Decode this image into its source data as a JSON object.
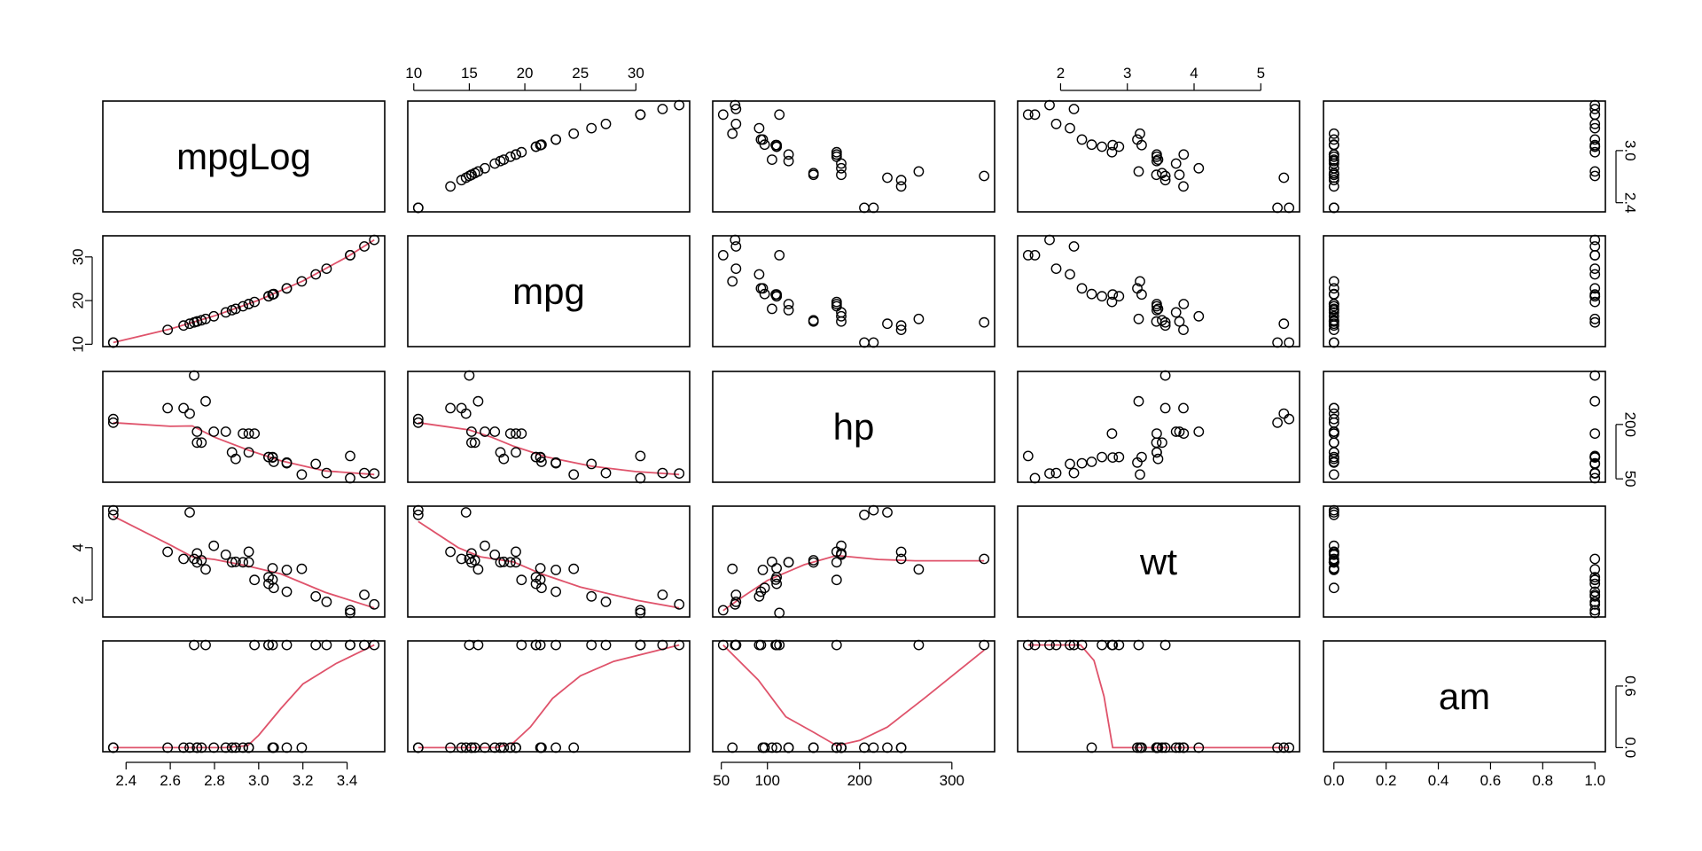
{
  "chart_data": {
    "type": "scatter",
    "title": "",
    "kind": "pairs-matrix",
    "variables": [
      "mpgLog",
      "mpg",
      "hp",
      "wt",
      "am"
    ],
    "smoother_color": "#DF536B",
    "point_color": "#000000",
    "data": {
      "mpg": [
        21.0,
        21.0,
        22.8,
        21.4,
        18.7,
        18.1,
        14.3,
        24.4,
        22.8,
        19.2,
        17.8,
        16.4,
        17.3,
        15.2,
        10.4,
        10.4,
        14.7,
        32.4,
        30.4,
        33.9,
        21.5,
        15.5,
        15.2,
        13.3,
        19.2,
        27.3,
        26.0,
        30.4,
        15.8,
        19.7,
        15.0,
        21.4
      ],
      "mpgLog": [
        3.045,
        3.045,
        3.127,
        3.063,
        2.929,
        2.896,
        2.66,
        3.195,
        3.127,
        2.955,
        2.879,
        2.797,
        2.851,
        2.721,
        2.342,
        2.342,
        2.688,
        3.478,
        3.414,
        3.523,
        3.068,
        2.741,
        2.721,
        2.588,
        2.955,
        3.307,
        3.258,
        3.414,
        2.76,
        2.981,
        2.708,
        3.063
      ],
      "hp": [
        110,
        110,
        93,
        110,
        175,
        105,
        245,
        62,
        95,
        123,
        123,
        180,
        180,
        180,
        205,
        215,
        230,
        66,
        52,
        65,
        97,
        150,
        150,
        245,
        175,
        66,
        91,
        113,
        264,
        175,
        335,
        109
      ],
      "wt": [
        2.62,
        2.875,
        2.32,
        3.215,
        3.44,
        3.46,
        3.57,
        3.19,
        3.15,
        3.44,
        3.44,
        4.07,
        3.73,
        3.78,
        5.25,
        5.424,
        5.345,
        2.2,
        1.615,
        1.835,
        2.465,
        3.52,
        3.435,
        3.84,
        3.845,
        1.935,
        2.14,
        1.513,
        3.17,
        2.77,
        3.57,
        2.78
      ],
      "am": [
        1,
        1,
        1,
        0,
        0,
        0,
        0,
        0,
        0,
        0,
        0,
        0,
        0,
        0,
        0,
        0,
        0,
        1,
        1,
        1,
        0,
        0,
        0,
        0,
        0,
        1,
        1,
        1,
        1,
        1,
        1,
        1
      ]
    },
    "ranges": {
      "mpgLog": [
        2.342,
        3.523
      ],
      "mpg": [
        10.4,
        33.9
      ],
      "hp": [
        52,
        335
      ],
      "wt": [
        1.513,
        5.424
      ],
      "am": [
        0,
        1
      ]
    },
    "ticks": {
      "mpgLog": [
        "2.4",
        "2.6",
        "2.8",
        "3.0",
        "3.2",
        "3.4"
      ],
      "mpgLog_right": [
        "2.4",
        "3.0"
      ],
      "mpg_top": [
        "10",
        "15",
        "20",
        "25",
        "30"
      ],
      "mpg_left": [
        "10",
        "20",
        "30"
      ],
      "hp_bottom": [
        "50",
        "100",
        "200",
        "300"
      ],
      "hp_right": [
        "50",
        "200"
      ],
      "wt_top": [
        "2",
        "3",
        "4",
        "5"
      ],
      "wt_left": [
        "2",
        "4"
      ],
      "am_bottom": [
        "0.0",
        "0.2",
        "0.4",
        "0.6",
        "0.8",
        "1.0"
      ],
      "am_right": [
        "0.0",
        "0.6"
      ]
    },
    "smoothers": {
      "mpg|mpgLog": {
        "x": [
          2.342,
          2.6,
          2.8,
          3.0,
          3.2,
          3.4,
          3.523
        ],
        "y": [
          10.4,
          13.5,
          16.5,
          20.1,
          24.5,
          30.0,
          33.9
        ]
      },
      "hp|mpgLog": {
        "x": [
          2.342,
          2.6,
          2.7,
          2.8,
          2.95,
          3.1,
          3.3,
          3.523
        ],
        "y": [
          205,
          195,
          196,
          165,
          130,
          100,
          72,
          62
        ]
      },
      "hp|mpg": {
        "x": [
          10.4,
          15,
          17,
          19,
          22,
          26,
          30,
          33.9
        ],
        "y": [
          205,
          185,
          165,
          140,
          110,
          85,
          70,
          62
        ]
      },
      "wt|mpgLog": {
        "x": [
          2.342,
          2.6,
          2.7,
          2.8,
          2.95,
          3.1,
          3.3,
          3.523
        ],
        "y": [
          5.2,
          4.1,
          3.65,
          3.55,
          3.3,
          3.0,
          2.3,
          1.7
        ]
      },
      "wt|mpg": {
        "x": [
          10.4,
          14,
          16,
          19,
          21.5,
          25,
          30,
          33.9
        ],
        "y": [
          5.0,
          4.0,
          3.65,
          3.45,
          3.0,
          2.5,
          2.0,
          1.7
        ]
      },
      "wt|hp": {
        "x": [
          52,
          70,
          100,
          140,
          175,
          220,
          260,
          335
        ],
        "y": [
          1.6,
          2.05,
          2.75,
          3.35,
          3.7,
          3.55,
          3.5,
          3.5
        ]
      },
      "am|mpgLog": {
        "x": [
          2.342,
          2.85,
          2.95,
          3.0,
          3.1,
          3.2,
          3.35,
          3.523
        ],
        "y": [
          0,
          0,
          0.02,
          0.12,
          0.38,
          0.62,
          0.82,
          1.0
        ]
      },
      "am|mpg": {
        "x": [
          10.4,
          17.5,
          19,
          20.5,
          22.5,
          25,
          28,
          33.9
        ],
        "y": [
          0,
          0,
          0.05,
          0.2,
          0.48,
          0.7,
          0.84,
          1.0
        ]
      },
      "am|hp": {
        "x": [
          52,
          90,
          120,
          150,
          175,
          200,
          230,
          270,
          335
        ],
        "y": [
          1.0,
          0.66,
          0.3,
          0.15,
          0.02,
          0.07,
          0.2,
          0.48,
          0.95
        ]
      },
      "am|wt": {
        "x": [
          1.513,
          1.95,
          2.3,
          2.5,
          2.65,
          2.78,
          3.0,
          4.0,
          5.424
        ],
        "y": [
          1.0,
          1.0,
          1.0,
          0.85,
          0.5,
          0.0,
          0.0,
          0.0,
          0.0
        ]
      }
    }
  }
}
